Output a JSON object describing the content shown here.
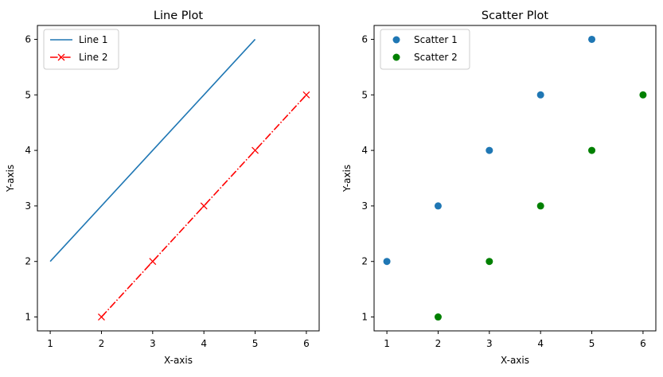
{
  "chart_data": [
    {
      "type": "line",
      "title": "Line Plot",
      "xlabel": "X-axis",
      "ylabel": "Y-axis",
      "xlim": [
        0.75,
        6.25
      ],
      "ylim": [
        0.75,
        6.25
      ],
      "xticks": [
        1,
        2,
        3,
        4,
        5,
        6
      ],
      "yticks": [
        1,
        2,
        3,
        4,
        5,
        6
      ],
      "grid": false,
      "legend": "top-left",
      "series": [
        {
          "name": "Line 1",
          "x": [
            1,
            2,
            3,
            4,
            5
          ],
          "y": [
            2,
            3,
            4,
            5,
            6
          ],
          "color": "#1f77b4",
          "linestyle": "solid",
          "marker": "none"
        },
        {
          "name": "Line 2",
          "x": [
            2,
            3,
            4,
            5,
            6
          ],
          "y": [
            1,
            2,
            3,
            4,
            5
          ],
          "color": "#ff0000",
          "linestyle": "dashdot",
          "marker": "x"
        }
      ]
    },
    {
      "type": "scatter",
      "title": "Scatter Plot",
      "xlabel": "X-axis",
      "ylabel": "Y-axis",
      "xlim": [
        0.75,
        6.25
      ],
      "ylim": [
        0.75,
        6.25
      ],
      "xticks": [
        1,
        2,
        3,
        4,
        5,
        6
      ],
      "yticks": [
        1,
        2,
        3,
        4,
        5,
        6
      ],
      "grid": false,
      "legend": "top-left",
      "series": [
        {
          "name": "Scatter 1",
          "x": [
            1,
            2,
            3,
            4,
            5
          ],
          "y": [
            2,
            3,
            4,
            5,
            6
          ],
          "color": "#1f77b4"
        },
        {
          "name": "Scatter 2",
          "x": [
            2,
            3,
            4,
            5,
            6
          ],
          "y": [
            1,
            2,
            3,
            4,
            5
          ],
          "color": "#008000"
        }
      ]
    }
  ]
}
